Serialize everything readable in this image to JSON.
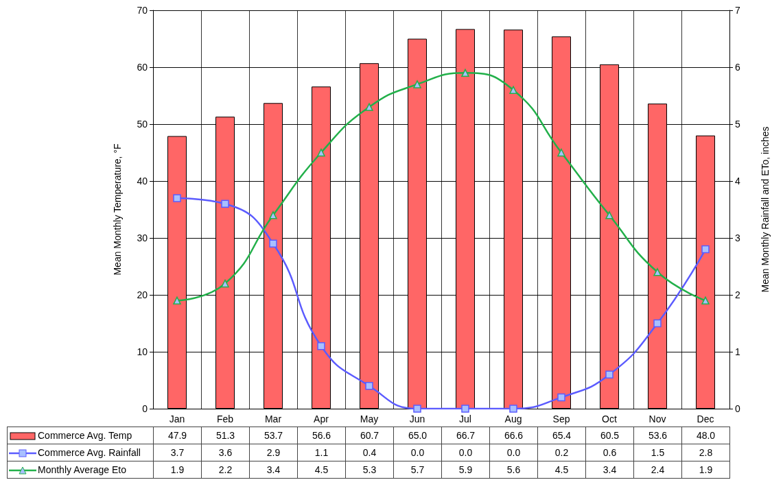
{
  "chart_data": {
    "type": "bar",
    "ylabel": "Mean Monthly Temperature, °F",
    "y2label": "Mean Monthly Rainfall and ETo, inches",
    "categories": [
      "Jan",
      "Feb",
      "Mar",
      "Apr",
      "May",
      "Jun",
      "Jul",
      "Aug",
      "Sep",
      "Oct",
      "Nov",
      "Dec"
    ],
    "series": [
      {
        "name": "Commerce Avg. Temp",
        "color": "#ff6666",
        "values": [
          47.9,
          51.3,
          53.7,
          56.6,
          60.7,
          65.0,
          66.7,
          66.6,
          65.4,
          60.5,
          53.6,
          48.0
        ],
        "value_labels": [
          "47.9",
          "51.3",
          "53.7",
          "56.6",
          "60.7",
          "65.0",
          "66.7",
          "66.6",
          "65.4",
          "60.5",
          "53.6",
          "48.0"
        ]
      },
      {
        "name": "Commerce Avg. Rainfall",
        "type": "line",
        "axis": "y2",
        "marker": "square",
        "color": "#5b5bff",
        "values": [
          3.7,
          3.6,
          2.9,
          1.1,
          0.4,
          0.0,
          0.0,
          0.0,
          0.2,
          0.6,
          1.5,
          2.8
        ],
        "value_labels": [
          "3.7",
          "3.6",
          "2.9",
          "1.1",
          "0.4",
          "0.0",
          "0.0",
          "0.0",
          "0.2",
          "0.6",
          "1.5",
          "2.8"
        ]
      },
      {
        "name": "Monthly Average Eto",
        "type": "line",
        "axis": "y2",
        "marker": "triangle",
        "color": "#22b04a",
        "values": [
          1.9,
          2.2,
          3.4,
          4.5,
          5.3,
          5.7,
          5.9,
          5.6,
          4.5,
          3.4,
          2.4,
          1.9
        ],
        "value_labels": [
          "1.9",
          "2.2",
          "3.4",
          "4.5",
          "5.3",
          "5.7",
          "5.9",
          "5.6",
          "4.5",
          "3.4",
          "2.4",
          "1.9"
        ]
      }
    ],
    "ylim": [
      0,
      70
    ],
    "yticks": [
      0,
      10,
      20,
      30,
      40,
      50,
      60,
      70
    ],
    "y2lim": [
      0,
      7
    ],
    "y2ticks": [
      0,
      1,
      2,
      3,
      4,
      5,
      6,
      7
    ],
    "grid": true,
    "legend": "bottom",
    "line_style": "solid"
  }
}
